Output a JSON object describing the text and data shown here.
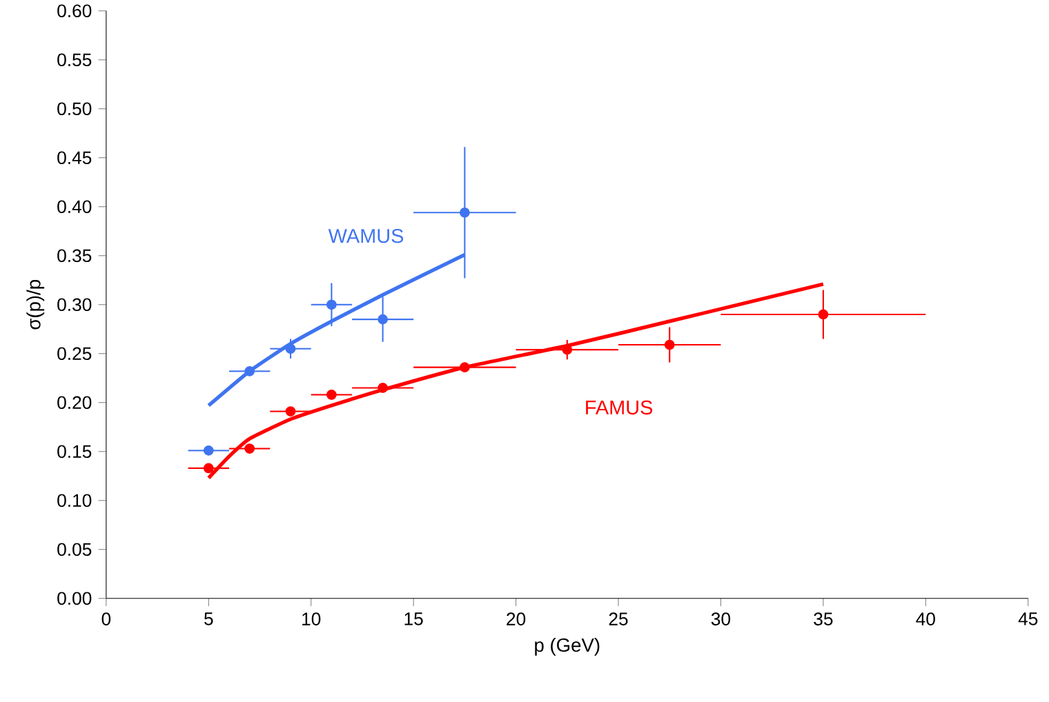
{
  "chart_data": {
    "type": "scatter",
    "xlabel": "p (GeV)",
    "ylabel": "σ(p)/p",
    "xlim": [
      0,
      45
    ],
    "ylim": [
      0,
      0.6
    ],
    "xticks": [
      0,
      5,
      10,
      15,
      20,
      25,
      30,
      35,
      40,
      45
    ],
    "yticks": [
      {
        "value": 0,
        "label": "0.00"
      },
      {
        "value": 0.05,
        "label": "0.05"
      },
      {
        "value": 0.1,
        "label": "0.10"
      },
      {
        "value": 0.15,
        "label": "0.15"
      },
      {
        "value": 0.2,
        "label": "0.20"
      },
      {
        "value": 0.25,
        "label": "0.25"
      },
      {
        "value": 0.3,
        "label": "0.30"
      },
      {
        "value": 0.35,
        "label": "0.35"
      },
      {
        "value": 0.4,
        "label": "0.40"
      },
      {
        "value": 0.45,
        "label": "0.45"
      },
      {
        "value": 0.5,
        "label": "0.50"
      },
      {
        "value": 0.55,
        "label": "0.55"
      },
      {
        "value": 0.6,
        "label": "0.60"
      }
    ],
    "grid": false,
    "legend": false,
    "series": [
      {
        "name": "WAMUS",
        "marker": "circle",
        "color": "#3f74f0",
        "x": [
          5,
          7,
          9,
          11,
          13.5,
          17.5
        ],
        "values": [
          0.151,
          0.232,
          0.255,
          0.3,
          0.285,
          0.394
        ],
        "xerrors": [
          1,
          1,
          1,
          1,
          1.5,
          2.5
        ],
        "errors": [
          null,
          null,
          0.01,
          0.022,
          0.023,
          0.067
        ]
      },
      {
        "name": "FAMUS",
        "marker": "circle",
        "color": "#ff0000",
        "x": [
          5,
          7,
          9,
          11,
          13.5,
          17.5,
          22.5,
          27.5,
          35
        ],
        "values": [
          0.133,
          0.153,
          0.191,
          0.208,
          0.215,
          0.236,
          0.254,
          0.259,
          0.29
        ],
        "xerrors": [
          1,
          1,
          1,
          1,
          1.5,
          2.5,
          2.5,
          2.5,
          5
        ],
        "errors": [
          null,
          null,
          null,
          null,
          null,
          null,
          0.01,
          0.018,
          0.025
        ]
      },
      {
        "type": "line",
        "marker": "none",
        "color": "#3f74f0",
        "x": [
          5,
          7,
          9,
          11,
          13.5,
          17.5
        ],
        "values": [
          0.197,
          0.232,
          0.26,
          0.283,
          0.31,
          0.351
        ]
      },
      {
        "type": "line",
        "marker": "none",
        "color": "#ff0000",
        "x": [
          5,
          6,
          7,
          9,
          11,
          13.5,
          17.5,
          22.5,
          27.5,
          35
        ],
        "values": [
          0.123,
          0.145,
          0.163,
          0.183,
          0.197,
          0.213,
          0.236,
          0.258,
          0.283,
          0.321
        ]
      }
    ]
  }
}
